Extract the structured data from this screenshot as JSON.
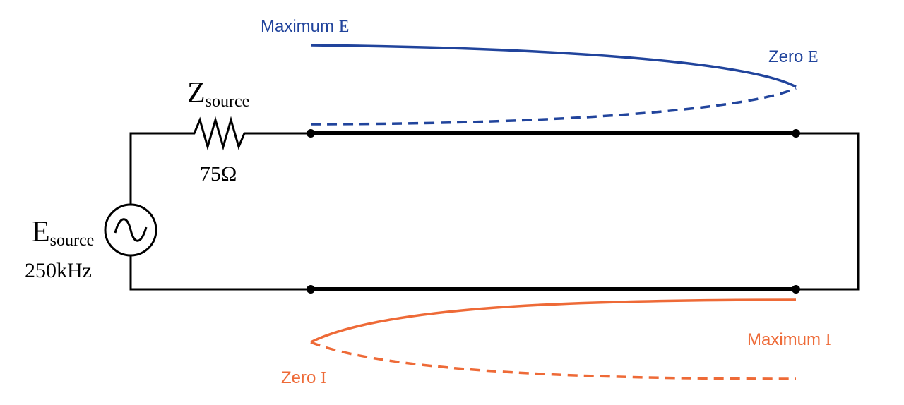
{
  "labels": {
    "max_e": {
      "text": "Maximum",
      "symbol": "E"
    },
    "zero_e": {
      "text": "Zero",
      "symbol": "E"
    },
    "z_source": {
      "symbol": "Z",
      "subscript": "source"
    },
    "resistance": "75Ω",
    "e_source": {
      "symbol": "E",
      "subscript": "source"
    },
    "frequency": "250kHz",
    "max_i": {
      "text": "Maximum",
      "symbol": "I"
    },
    "zero_i": {
      "text": "Zero",
      "symbol": "I"
    }
  }
}
